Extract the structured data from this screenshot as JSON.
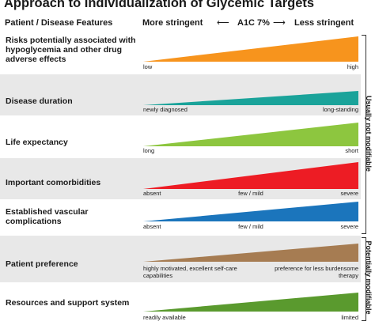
{
  "title": "Approach to Individualization of Glycemic Targets",
  "header": {
    "left": "Patient / Disease Features",
    "more": "More stringent",
    "a1c": "A1C 7%",
    "less": "Less stringent",
    "arrow_left": "⟵",
    "arrow_right": "⟶"
  },
  "rows": [
    {
      "label": "Risks potentially associated with hypoglycemia and other drug adverse effects",
      "color": "#f7941d",
      "scale": [
        "low",
        "",
        "high"
      ]
    },
    {
      "label": "Disease duration",
      "color": "#1aa39a",
      "scale": [
        "newly diagnosed",
        "",
        "long-standing"
      ]
    },
    {
      "label": "Life expectancy",
      "color": "#8dc63f",
      "scale": [
        "long",
        "",
        "short"
      ]
    },
    {
      "label": "Important comorbidities",
      "color": "#ed1c24",
      "scale": [
        "absent",
        "few / mild",
        "severe"
      ]
    },
    {
      "label": "Established vascular complications",
      "color": "#1b75bc",
      "scale": [
        "absent",
        "few / mild",
        "severe"
      ]
    },
    {
      "label": "Patient preference",
      "color": "#a67c52",
      "scale": [
        "highly motivated, excellent self-care capabilities",
        "",
        "preference for less burdensome therapy"
      ]
    },
    {
      "label": "Resources and support system",
      "color": "#5a9a2e",
      "scale": [
        "readily available",
        "",
        "limited"
      ]
    }
  ],
  "side_labels": {
    "top": "Usually not modifiable",
    "bottom": "Potentially modifiable"
  }
}
